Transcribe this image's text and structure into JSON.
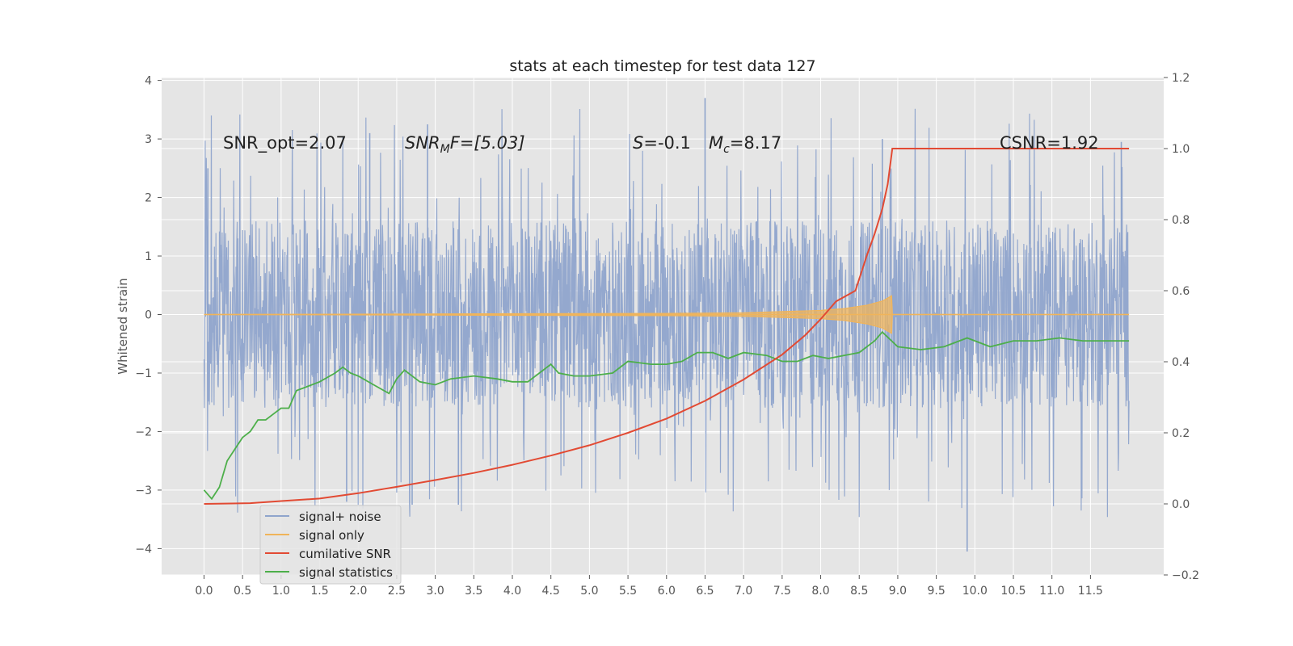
{
  "chart_data": {
    "type": "line",
    "title": "stats at each timestep for test data 127",
    "ylabel": "Whitened strain",
    "xlabel": "",
    "xlim": [
      -0.55,
      12.45
    ],
    "ylim": [
      -4.45,
      4.05
    ],
    "y2lim": [
      -0.2,
      1.2
    ],
    "xticks": [
      "0.0",
      "0.5",
      "1.0",
      "1.5",
      "2.0",
      "2.5",
      "3.0",
      "3.5",
      "4.0",
      "4.5",
      "5.0",
      "5.5",
      "6.0",
      "6.5",
      "7.0",
      "7.5",
      "8.0",
      "8.5",
      "9.0",
      "9.5",
      "10.0",
      "10.5",
      "11.0",
      "11.5"
    ],
    "yticks": [
      "4",
      "3",
      "2",
      "1",
      "0",
      "−1",
      "−2",
      "−3",
      "−4"
    ],
    "y2ticks": [
      "1.2",
      "1.0",
      "0.8",
      "0.6",
      "0.4",
      "0.2",
      "0.0",
      "−0.2"
    ],
    "grid": true,
    "legend": {
      "position": "lower-left",
      "entries": [
        "signal+ noise",
        "signal only",
        "cumilative SNR",
        "signal statistics"
      ]
    },
    "annotations": {
      "snr_opt": "SNR_opt=2.07",
      "snr_mf_pre": "SNR",
      "snr_mf_sub": "M",
      "snr_mf_post": "F=[5.03]",
      "s_var": "S",
      "s_val": "=-0.1",
      "mc_var": "M",
      "mc_sub": "c",
      "mc_val": "=8.17",
      "csnr": "CSNR=1.92"
    },
    "series": [
      {
        "name": "signal+ noise",
        "axis": "left",
        "color": "#8fa4cc",
        "x_range": [
          0.0,
          12.0
        ],
        "typical_range": [
          -1.6,
          1.6
        ],
        "notable_peaks": [
          [
            0.05,
            2.5
          ],
          [
            2.15,
            3.1
          ],
          [
            2.9,
            3.25
          ],
          [
            6.5,
            3.7
          ],
          [
            8.8,
            3.0
          ],
          [
            11.9,
            2.95
          ],
          [
            1.85,
            -3.2
          ],
          [
            2.7,
            -3.25
          ],
          [
            3.3,
            -3.25
          ],
          [
            9.9,
            -4.05
          ]
        ]
      },
      {
        "name": "signal only",
        "axis": "left",
        "color": "#f0b45a",
        "x": [
          0.0,
          6.0,
          7.0,
          7.5,
          8.0,
          8.3,
          8.6,
          8.8,
          8.92,
          8.93,
          12.0
        ],
        "envelope": [
          0.0,
          0.02,
          0.03,
          0.05,
          0.07,
          0.1,
          0.16,
          0.23,
          0.32,
          0.0,
          0.0
        ]
      },
      {
        "name": "cumilative SNR",
        "axis": "right",
        "color": "#e24a33",
        "x": [
          0.0,
          0.6,
          1.0,
          1.5,
          2.0,
          2.5,
          3.0,
          3.5,
          4.0,
          4.5,
          5.0,
          5.5,
          6.0,
          6.5,
          7.0,
          7.5,
          7.8,
          8.0,
          8.2,
          8.45,
          8.6,
          8.7,
          8.8,
          8.87,
          8.93,
          9.0,
          10.0,
          11.0,
          12.0
        ],
        "values": [
          0.0,
          0.002,
          0.008,
          0.015,
          0.03,
          0.048,
          0.067,
          0.087,
          0.11,
          0.136,
          0.165,
          0.2,
          0.24,
          0.29,
          0.35,
          0.42,
          0.475,
          0.52,
          0.57,
          0.6,
          0.7,
          0.76,
          0.83,
          0.9,
          1.0,
          1.0,
          1.0,
          1.0,
          1.0
        ],
        "values_note_skip": true
      },
      {
        "name": "signal statistics",
        "axis": "left",
        "color": "#4daf4a",
        "x": [
          0.0,
          0.1,
          0.2,
          0.3,
          0.4,
          0.5,
          0.6,
          0.7,
          0.8,
          0.9,
          1.0,
          1.1,
          1.2,
          1.3,
          1.5,
          1.7,
          1.8,
          1.9,
          2.0,
          2.2,
          2.4,
          2.5,
          2.6,
          2.8,
          3.0,
          3.2,
          3.5,
          3.8,
          4.0,
          4.2,
          4.5,
          4.6,
          4.8,
          5.0,
          5.3,
          5.5,
          5.8,
          6.0,
          6.2,
          6.4,
          6.6,
          6.8,
          7.0,
          7.3,
          7.5,
          7.7,
          7.9,
          8.1,
          8.3,
          8.5,
          8.7,
          8.8,
          9.0,
          9.3,
          9.6,
          9.9,
          10.2,
          10.5,
          10.8,
          11.1,
          11.4,
          11.7,
          12.0
        ],
        "values": [
          -3.0,
          -3.15,
          -2.95,
          -2.5,
          -2.3,
          -2.1,
          -2.0,
          -1.8,
          -1.8,
          -1.7,
          -1.6,
          -1.6,
          -1.3,
          -1.25,
          -1.15,
          -1.0,
          -0.9,
          -1.0,
          -1.05,
          -1.2,
          -1.35,
          -1.1,
          -0.95,
          -1.15,
          -1.2,
          -1.1,
          -1.05,
          -1.1,
          -1.15,
          -1.15,
          -0.85,
          -1.0,
          -1.05,
          -1.05,
          -1.0,
          -0.8,
          -0.85,
          -0.85,
          -0.8,
          -0.65,
          -0.65,
          -0.75,
          -0.65,
          -0.7,
          -0.8,
          -0.8,
          -0.7,
          -0.75,
          -0.7,
          -0.65,
          -0.45,
          -0.3,
          -0.55,
          -0.6,
          -0.55,
          -0.4,
          -0.55,
          -0.45,
          -0.45,
          -0.4,
          -0.45,
          -0.45,
          -0.45
        ]
      }
    ]
  }
}
